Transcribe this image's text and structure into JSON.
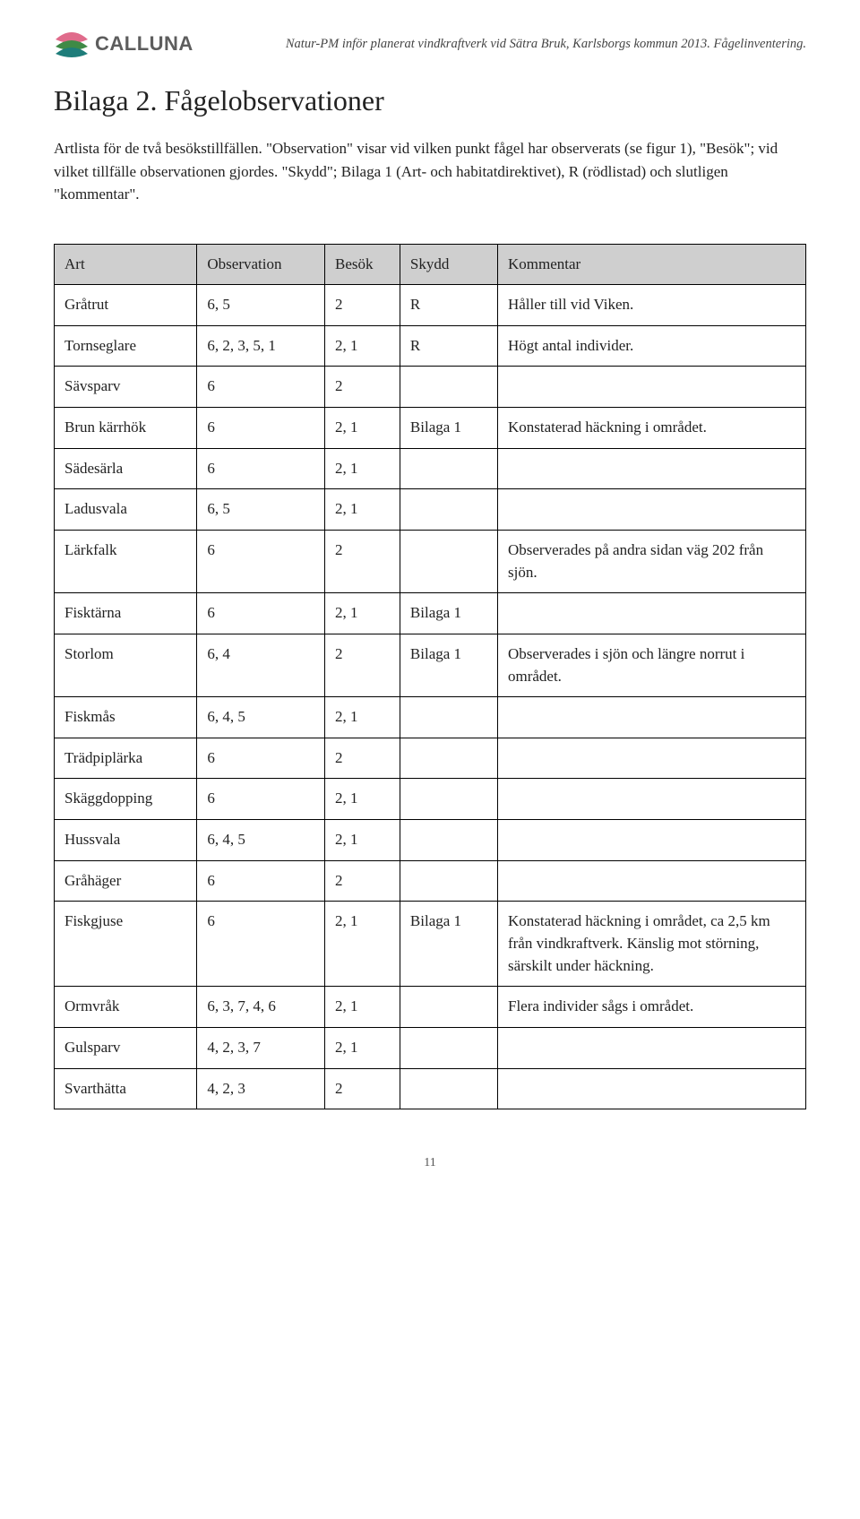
{
  "header": {
    "logo_text": "CALLUNA",
    "caption": "Natur-PM inför planerat vindkraftverk vid Sätra Bruk, Karlsborgs kommun 2013. Fågelinventering.",
    "logo_colors": {
      "pink": "#e06b8b",
      "green": "#3f8a46",
      "teal": "#1e7d7a"
    }
  },
  "title": "Bilaga 2. Fågelobservationer",
  "intro": "Artlista för de två besökstillfällen. \"Observation\" visar vid vilken punkt fågel har observerats (se figur 1), \"Besök\"; vid vilket tillfälle observationen gjordes. \"Skydd\"; Bilaga 1 (Art- och habitatdirektivet), R (rödlistad) och slutligen \"kommentar\".",
  "table": {
    "columns": [
      "Art",
      "Observation",
      "Besök",
      "Skydd",
      "Kommentar"
    ],
    "rows": [
      [
        "Gråtrut",
        "6, 5",
        "2",
        "R",
        "Håller till vid Viken."
      ],
      [
        "Tornseglare",
        "6, 2, 3, 5, 1",
        "2, 1",
        "R",
        "Högt antal individer."
      ],
      [
        "Sävsparv",
        "6",
        "2",
        "",
        ""
      ],
      [
        "Brun kärrhök",
        "6",
        "2, 1",
        "Bilaga 1",
        "Konstaterad häckning i området."
      ],
      [
        "Sädesärla",
        "6",
        "2, 1",
        "",
        ""
      ],
      [
        "Ladusvala",
        "6, 5",
        "2, 1",
        "",
        ""
      ],
      [
        "Lärkfalk",
        "6",
        "2",
        "",
        "Observerades på andra sidan väg 202 från sjön."
      ],
      [
        "Fisktärna",
        "6",
        "2, 1",
        "Bilaga 1",
        ""
      ],
      [
        "Storlom",
        "6, 4",
        "2",
        "Bilaga 1",
        "Observerades i sjön och längre norrut i området."
      ],
      [
        "Fiskmås",
        "6, 4, 5",
        "2, 1",
        "",
        ""
      ],
      [
        "Trädpiplärka",
        "6",
        "2",
        "",
        ""
      ],
      [
        "Skäggdopping",
        "6",
        "2, 1",
        "",
        ""
      ],
      [
        "Hussvala",
        "6, 4, 5",
        "2, 1",
        "",
        ""
      ],
      [
        "Gråhäger",
        "6",
        "2",
        "",
        ""
      ],
      [
        "Fiskgjuse",
        "6",
        "2, 1",
        "Bilaga 1",
        "Konstaterad häckning i området, ca 2,5 km från vindkraftverk. Känslig mot störning, särskilt under häckning."
      ],
      [
        "Ormvråk",
        "6, 3, 7, 4, 6",
        "2, 1",
        "",
        "Flera individer sågs i området."
      ],
      [
        "Gulsparv",
        "4, 2, 3, 7",
        "2, 1",
        "",
        ""
      ],
      [
        "Svarthätta",
        "4, 2, 3",
        "2",
        "",
        ""
      ]
    ]
  },
  "page_number": "11"
}
